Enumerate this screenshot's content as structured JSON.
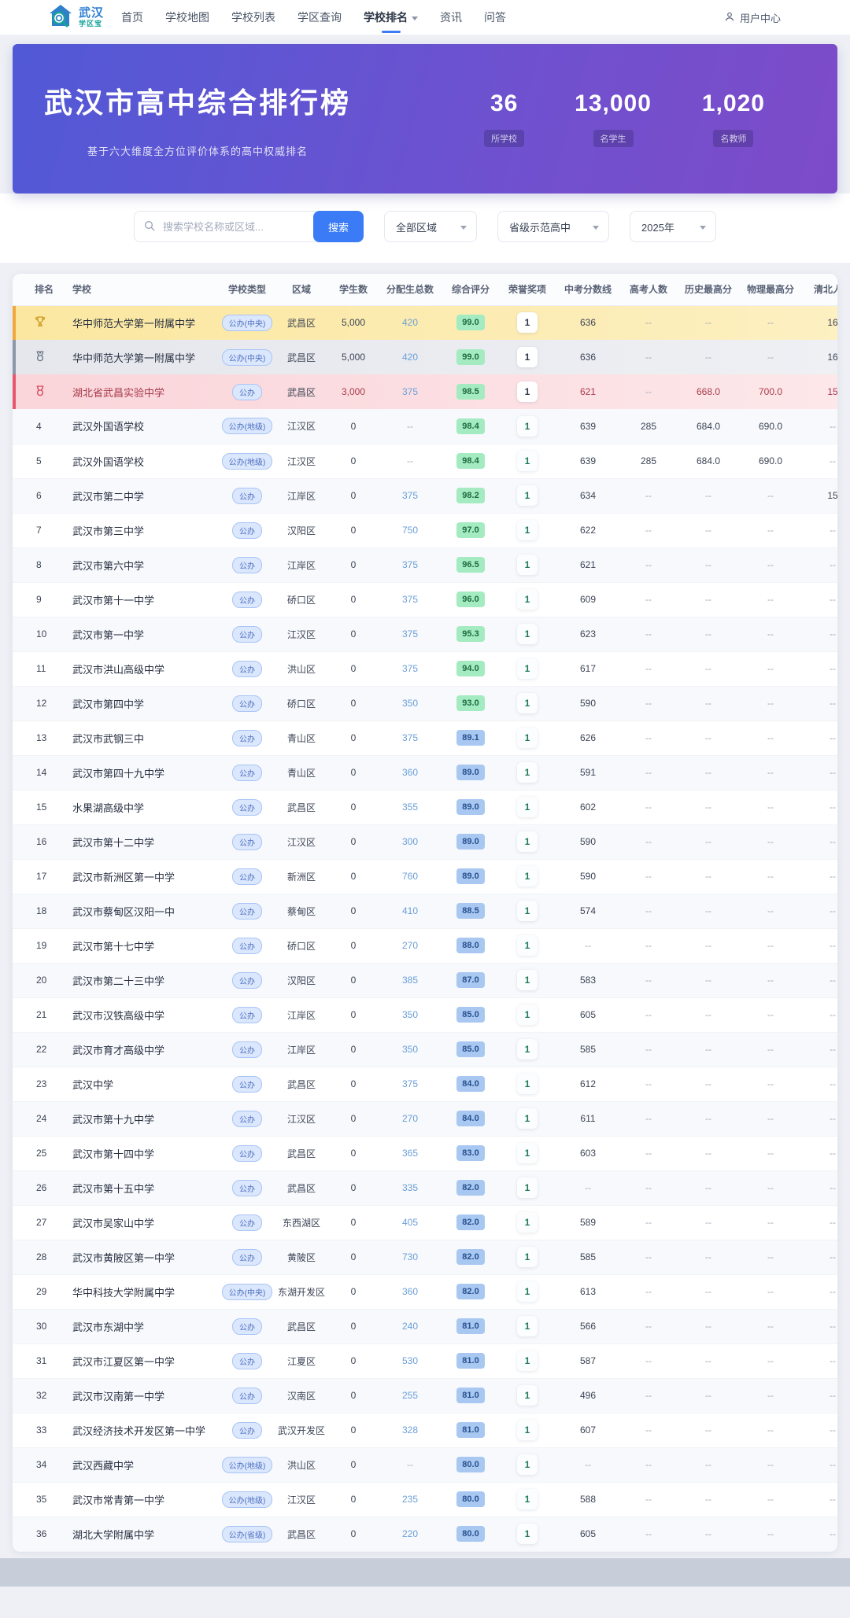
{
  "brand": {
    "line1": "武汉",
    "line2": "学区宝"
  },
  "nav": {
    "items": [
      {
        "label": "首页",
        "active": false,
        "dropdown": false
      },
      {
        "label": "学校地图",
        "active": false,
        "dropdown": false
      },
      {
        "label": "学校列表",
        "active": false,
        "dropdown": false
      },
      {
        "label": "学区查询",
        "active": false,
        "dropdown": false
      },
      {
        "label": "学校排名",
        "active": true,
        "dropdown": true
      },
      {
        "label": "资讯",
        "active": false,
        "dropdown": false
      },
      {
        "label": "问答",
        "active": false,
        "dropdown": false
      }
    ],
    "user_center": "用户中心"
  },
  "hero": {
    "title": "武汉市高中综合排行榜",
    "subtitle": "基于六大维度全方位评价体系的高中权威排名",
    "stats": [
      {
        "value": "36",
        "label": "所学校"
      },
      {
        "value": "13,000",
        "label": "名学生"
      },
      {
        "value": "1,020",
        "label": "名教师"
      }
    ]
  },
  "filters": {
    "search_placeholder": "搜索学校名称或区域...",
    "search_button": "搜索",
    "region_select": "全部区域",
    "level_select": "省级示范高中",
    "year_select": "2025年"
  },
  "table": {
    "headers": [
      "排名",
      "学校",
      "学校类型",
      "区域",
      "学生数",
      "分配生总数",
      "综合评分",
      "荣誉奖项",
      "中考分数线",
      "高考人数",
      "历史最高分",
      "物理最高分",
      "清北人数"
    ],
    "rows": [
      {
        "rank": "1",
        "medal": "gold",
        "school": "华中师范大学第一附属中学",
        "type": "公办(中央)",
        "region": "武昌区",
        "students": "5,000",
        "quota": "420",
        "score": "99.0",
        "honors": "1",
        "cutoff": "636",
        "gaokao": "--",
        "hist": "--",
        "phys": "--",
        "qb": "16"
      },
      {
        "rank": "2",
        "medal": "silver",
        "school": "华中师范大学第一附属中学",
        "type": "公办(中央)",
        "region": "武昌区",
        "students": "5,000",
        "quota": "420",
        "score": "99.0",
        "honors": "1",
        "cutoff": "636",
        "gaokao": "--",
        "hist": "--",
        "phys": "--",
        "qb": "16"
      },
      {
        "rank": "3",
        "medal": "bronze",
        "school": "湖北省武昌实验中学",
        "type": "公办",
        "region": "武昌区",
        "students": "3,000",
        "quota": "375",
        "score": "98.5",
        "honors": "1",
        "cutoff": "621",
        "gaokao": "--",
        "hist": "668.0",
        "phys": "700.0",
        "qb": "15"
      },
      {
        "rank": "4",
        "medal": null,
        "school": "武汉外国语学校",
        "type": "公办(地级)",
        "region": "江汉区",
        "students": "0",
        "quota": "--",
        "score": "98.4",
        "honors": "1",
        "cutoff": "639",
        "gaokao": "285",
        "hist": "684.0",
        "phys": "690.0",
        "qb": "--"
      },
      {
        "rank": "5",
        "medal": null,
        "school": "武汉外国语学校",
        "type": "公办(地级)",
        "region": "江汉区",
        "students": "0",
        "quota": "--",
        "score": "98.4",
        "honors": "1",
        "cutoff": "639",
        "gaokao": "285",
        "hist": "684.0",
        "phys": "690.0",
        "qb": "--"
      },
      {
        "rank": "6",
        "medal": null,
        "school": "武汉市第二中学",
        "type": "公办",
        "region": "江岸区",
        "students": "0",
        "quota": "375",
        "score": "98.2",
        "honors": "1",
        "cutoff": "634",
        "gaokao": "--",
        "hist": "--",
        "phys": "--",
        "qb": "15"
      },
      {
        "rank": "7",
        "medal": null,
        "school": "武汉市第三中学",
        "type": "公办",
        "region": "汉阳区",
        "students": "0",
        "quota": "750",
        "score": "97.0",
        "honors": "1",
        "cutoff": "622",
        "gaokao": "--",
        "hist": "--",
        "phys": "--",
        "qb": "--"
      },
      {
        "rank": "8",
        "medal": null,
        "school": "武汉市第六中学",
        "type": "公办",
        "region": "江岸区",
        "students": "0",
        "quota": "375",
        "score": "96.5",
        "honors": "1",
        "cutoff": "621",
        "gaokao": "--",
        "hist": "--",
        "phys": "--",
        "qb": "--"
      },
      {
        "rank": "9",
        "medal": null,
        "school": "武汉市第十一中学",
        "type": "公办",
        "region": "硚口区",
        "students": "0",
        "quota": "375",
        "score": "96.0",
        "honors": "1",
        "cutoff": "609",
        "gaokao": "--",
        "hist": "--",
        "phys": "--",
        "qb": "--"
      },
      {
        "rank": "10",
        "medal": null,
        "school": "武汉市第一中学",
        "type": "公办",
        "region": "江汉区",
        "students": "0",
        "quota": "375",
        "score": "95.3",
        "honors": "1",
        "cutoff": "623",
        "gaokao": "--",
        "hist": "--",
        "phys": "--",
        "qb": "--"
      },
      {
        "rank": "11",
        "medal": null,
        "school": "武汉市洪山高级中学",
        "type": "公办",
        "region": "洪山区",
        "students": "0",
        "quota": "375",
        "score": "94.0",
        "honors": "1",
        "cutoff": "617",
        "gaokao": "--",
        "hist": "--",
        "phys": "--",
        "qb": "--"
      },
      {
        "rank": "12",
        "medal": null,
        "school": "武汉市第四中学",
        "type": "公办",
        "region": "硚口区",
        "students": "0",
        "quota": "350",
        "score": "93.0",
        "honors": "1",
        "cutoff": "590",
        "gaokao": "--",
        "hist": "--",
        "phys": "--",
        "qb": "--"
      },
      {
        "rank": "13",
        "medal": null,
        "school": "武汉市武钢三中",
        "type": "公办",
        "region": "青山区",
        "students": "0",
        "quota": "375",
        "score": "89.1",
        "honors": "1",
        "cutoff": "626",
        "gaokao": "--",
        "hist": "--",
        "phys": "--",
        "qb": "--"
      },
      {
        "rank": "14",
        "medal": null,
        "school": "武汉市第四十九中学",
        "type": "公办",
        "region": "青山区",
        "students": "0",
        "quota": "360",
        "score": "89.0",
        "honors": "1",
        "cutoff": "591",
        "gaokao": "--",
        "hist": "--",
        "phys": "--",
        "qb": "--"
      },
      {
        "rank": "15",
        "medal": null,
        "school": "水果湖高级中学",
        "type": "公办",
        "region": "武昌区",
        "students": "0",
        "quota": "355",
        "score": "89.0",
        "honors": "1",
        "cutoff": "602",
        "gaokao": "--",
        "hist": "--",
        "phys": "--",
        "qb": "--"
      },
      {
        "rank": "16",
        "medal": null,
        "school": "武汉市第十二中学",
        "type": "公办",
        "region": "江汉区",
        "students": "0",
        "quota": "300",
        "score": "89.0",
        "honors": "1",
        "cutoff": "590",
        "gaokao": "--",
        "hist": "--",
        "phys": "--",
        "qb": "--"
      },
      {
        "rank": "17",
        "medal": null,
        "school": "武汉市新洲区第一中学",
        "type": "公办",
        "region": "新洲区",
        "students": "0",
        "quota": "760",
        "score": "89.0",
        "honors": "1",
        "cutoff": "590",
        "gaokao": "--",
        "hist": "--",
        "phys": "--",
        "qb": "--"
      },
      {
        "rank": "18",
        "medal": null,
        "school": "武汉市蔡甸区汉阳一中",
        "type": "公办",
        "region": "蔡甸区",
        "students": "0",
        "quota": "410",
        "score": "88.5",
        "honors": "1",
        "cutoff": "574",
        "gaokao": "--",
        "hist": "--",
        "phys": "--",
        "qb": "--"
      },
      {
        "rank": "19",
        "medal": null,
        "school": "武汉市第十七中学",
        "type": "公办",
        "region": "硚口区",
        "students": "0",
        "quota": "270",
        "score": "88.0",
        "honors": "1",
        "cutoff": "--",
        "gaokao": "--",
        "hist": "--",
        "phys": "--",
        "qb": "--"
      },
      {
        "rank": "20",
        "medal": null,
        "school": "武汉市第二十三中学",
        "type": "公办",
        "region": "汉阳区",
        "students": "0",
        "quota": "385",
        "score": "87.0",
        "honors": "1",
        "cutoff": "583",
        "gaokao": "--",
        "hist": "--",
        "phys": "--",
        "qb": "--"
      },
      {
        "rank": "21",
        "medal": null,
        "school": "武汉市汉铁高级中学",
        "type": "公办",
        "region": "江岸区",
        "students": "0",
        "quota": "350",
        "score": "85.0",
        "honors": "1",
        "cutoff": "605",
        "gaokao": "--",
        "hist": "--",
        "phys": "--",
        "qb": "--"
      },
      {
        "rank": "22",
        "medal": null,
        "school": "武汉市育才高级中学",
        "type": "公办",
        "region": "江岸区",
        "students": "0",
        "quota": "350",
        "score": "85.0",
        "honors": "1",
        "cutoff": "585",
        "gaokao": "--",
        "hist": "--",
        "phys": "--",
        "qb": "--"
      },
      {
        "rank": "23",
        "medal": null,
        "school": "武汉中学",
        "type": "公办",
        "region": "武昌区",
        "students": "0",
        "quota": "375",
        "score": "84.0",
        "honors": "1",
        "cutoff": "612",
        "gaokao": "--",
        "hist": "--",
        "phys": "--",
        "qb": "--"
      },
      {
        "rank": "24",
        "medal": null,
        "school": "武汉市第十九中学",
        "type": "公办",
        "region": "江汉区",
        "students": "0",
        "quota": "270",
        "score": "84.0",
        "honors": "1",
        "cutoff": "611",
        "gaokao": "--",
        "hist": "--",
        "phys": "--",
        "qb": "--"
      },
      {
        "rank": "25",
        "medal": null,
        "school": "武汉市第十四中学",
        "type": "公办",
        "region": "武昌区",
        "students": "0",
        "quota": "365",
        "score": "83.0",
        "honors": "1",
        "cutoff": "603",
        "gaokao": "--",
        "hist": "--",
        "phys": "--",
        "qb": "--"
      },
      {
        "rank": "26",
        "medal": null,
        "school": "武汉市第十五中学",
        "type": "公办",
        "region": "武昌区",
        "students": "0",
        "quota": "335",
        "score": "82.0",
        "honors": "1",
        "cutoff": "--",
        "gaokao": "--",
        "hist": "--",
        "phys": "--",
        "qb": "--"
      },
      {
        "rank": "27",
        "medal": null,
        "school": "武汉市吴家山中学",
        "type": "公办",
        "region": "东西湖区",
        "students": "0",
        "quota": "405",
        "score": "82.0",
        "honors": "1",
        "cutoff": "589",
        "gaokao": "--",
        "hist": "--",
        "phys": "--",
        "qb": "--"
      },
      {
        "rank": "28",
        "medal": null,
        "school": "武汉市黄陂区第一中学",
        "type": "公办",
        "region": "黄陂区",
        "students": "0",
        "quota": "730",
        "score": "82.0",
        "honors": "1",
        "cutoff": "585",
        "gaokao": "--",
        "hist": "--",
        "phys": "--",
        "qb": "--"
      },
      {
        "rank": "29",
        "medal": null,
        "school": "华中科技大学附属中学",
        "type": "公办(中央)",
        "region": "东湖开发区",
        "students": "0",
        "quota": "360",
        "score": "82.0",
        "honors": "1",
        "cutoff": "613",
        "gaokao": "--",
        "hist": "--",
        "phys": "--",
        "qb": "--"
      },
      {
        "rank": "30",
        "medal": null,
        "school": "武汉市东湖中学",
        "type": "公办",
        "region": "武昌区",
        "students": "0",
        "quota": "240",
        "score": "81.0",
        "honors": "1",
        "cutoff": "566",
        "gaokao": "--",
        "hist": "--",
        "phys": "--",
        "qb": "--"
      },
      {
        "rank": "31",
        "medal": null,
        "school": "武汉市江夏区第一中学",
        "type": "公办",
        "region": "江夏区",
        "students": "0",
        "quota": "530",
        "score": "81.0",
        "honors": "1",
        "cutoff": "587",
        "gaokao": "--",
        "hist": "--",
        "phys": "--",
        "qb": "--"
      },
      {
        "rank": "32",
        "medal": null,
        "school": "武汉市汉南第一中学",
        "type": "公办",
        "region": "汉南区",
        "students": "0",
        "quota": "255",
        "score": "81.0",
        "honors": "1",
        "cutoff": "496",
        "gaokao": "--",
        "hist": "--",
        "phys": "--",
        "qb": "--"
      },
      {
        "rank": "33",
        "medal": null,
        "school": "武汉经济技术开发区第一中学",
        "type": "公办",
        "region": "武汉开发区",
        "students": "0",
        "quota": "328",
        "score": "81.0",
        "honors": "1",
        "cutoff": "607",
        "gaokao": "--",
        "hist": "--",
        "phys": "--",
        "qb": "--"
      },
      {
        "rank": "34",
        "medal": null,
        "school": "武汉西藏中学",
        "type": "公办(地级)",
        "region": "洪山区",
        "students": "0",
        "quota": "--",
        "score": "80.0",
        "honors": "1",
        "cutoff": "--",
        "gaokao": "--",
        "hist": "--",
        "phys": "--",
        "qb": "--"
      },
      {
        "rank": "35",
        "medal": null,
        "school": "武汉市常青第一中学",
        "type": "公办(地级)",
        "region": "江汉区",
        "students": "0",
        "quota": "235",
        "score": "80.0",
        "honors": "1",
        "cutoff": "588",
        "gaokao": "--",
        "hist": "--",
        "phys": "--",
        "qb": "--"
      },
      {
        "rank": "36",
        "medal": null,
        "school": "湖北大学附属中学",
        "type": "公办(省级)",
        "region": "武昌区",
        "students": "0",
        "quota": "220",
        "score": "80.0",
        "honors": "1",
        "cutoff": "605",
        "gaokao": "--",
        "hist": "--",
        "phys": "--",
        "qb": "--"
      }
    ]
  },
  "colors": {
    "accent_blue": "#3b7cf6",
    "hero_gradient_start": "#5159d6",
    "hero_gradient_end": "#7d4bc9",
    "gold": "#f2a93b",
    "silver": "#8d95a8",
    "bronze": "#e8556d",
    "score_green_bg": "#a5ebc1",
    "score_blue_bg": "#a9c8f1"
  }
}
